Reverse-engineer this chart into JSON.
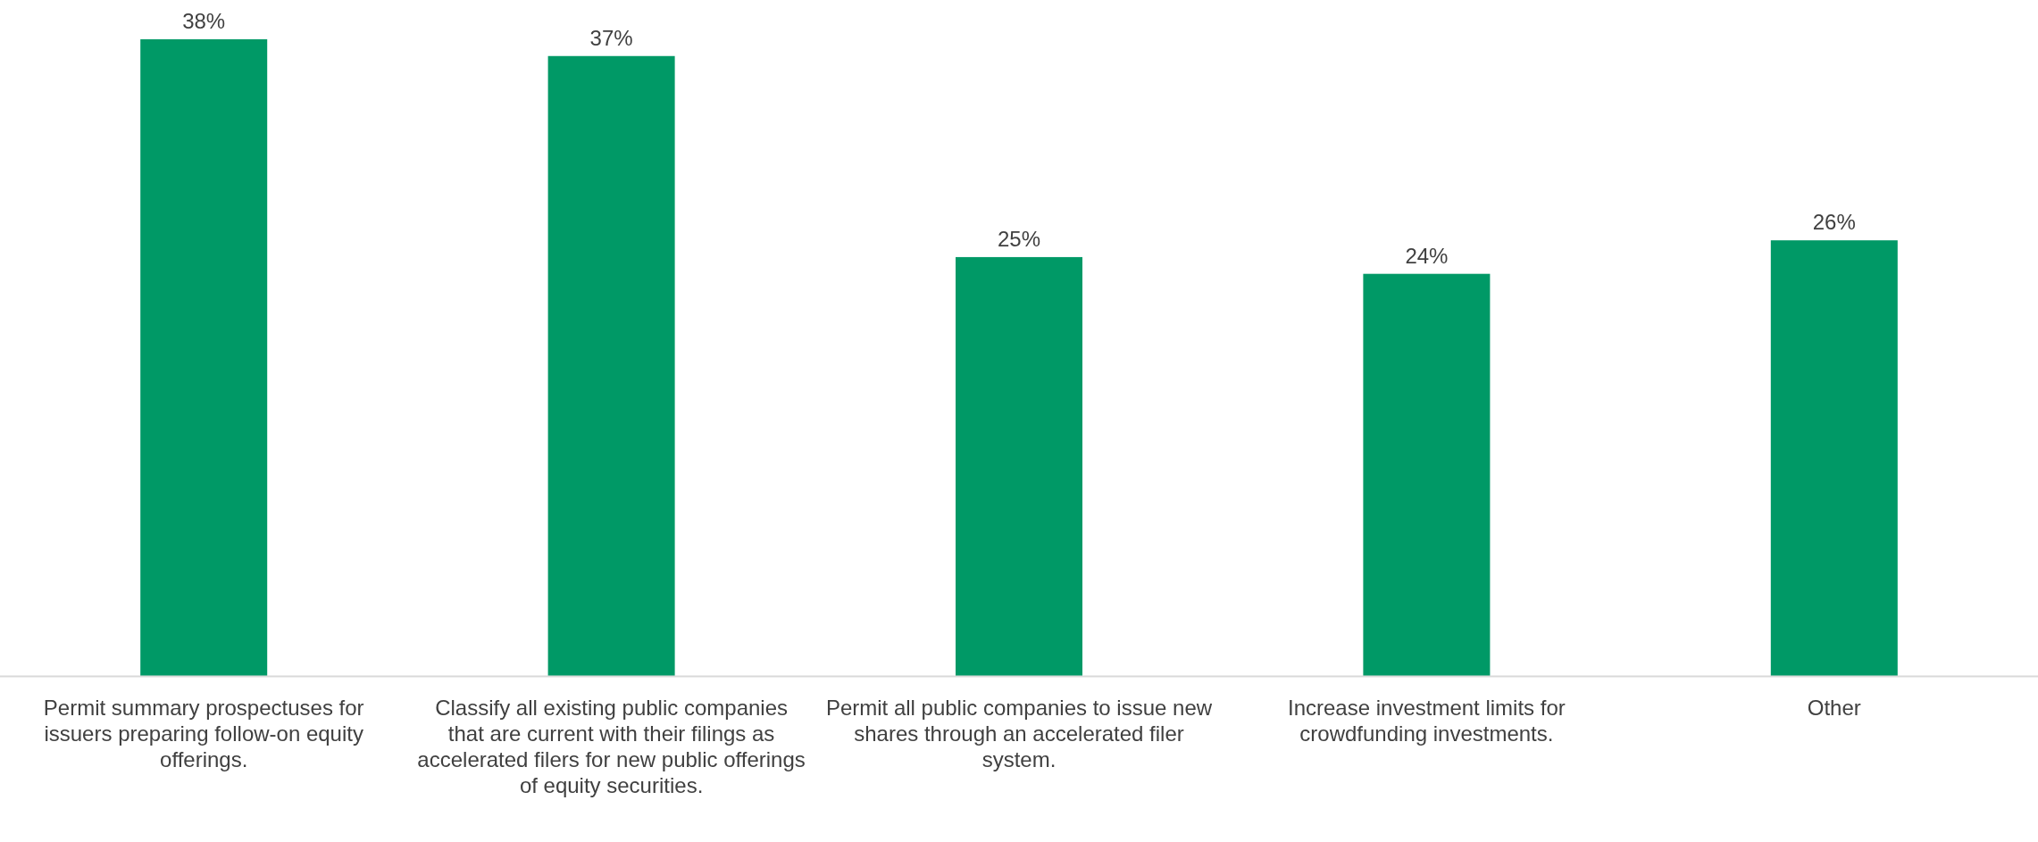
{
  "chart_data": {
    "type": "bar",
    "categories": [
      "Permit summary prospectuses for issuers preparing follow-on equity offerings.",
      "Classify all existing public companies that are current with their filings as accelerated filers for new public offerings of equity securities.",
      "Permit all public companies to issue new shares through an accelerated filer system.",
      "Increase investment limits for crowdfunding investments.",
      "Other"
    ],
    "values": [
      38,
      37,
      25,
      24,
      26
    ],
    "value_labels": [
      "38%",
      "37%",
      "25%",
      "24%",
      "26%"
    ],
    "color": "#009966"
  }
}
